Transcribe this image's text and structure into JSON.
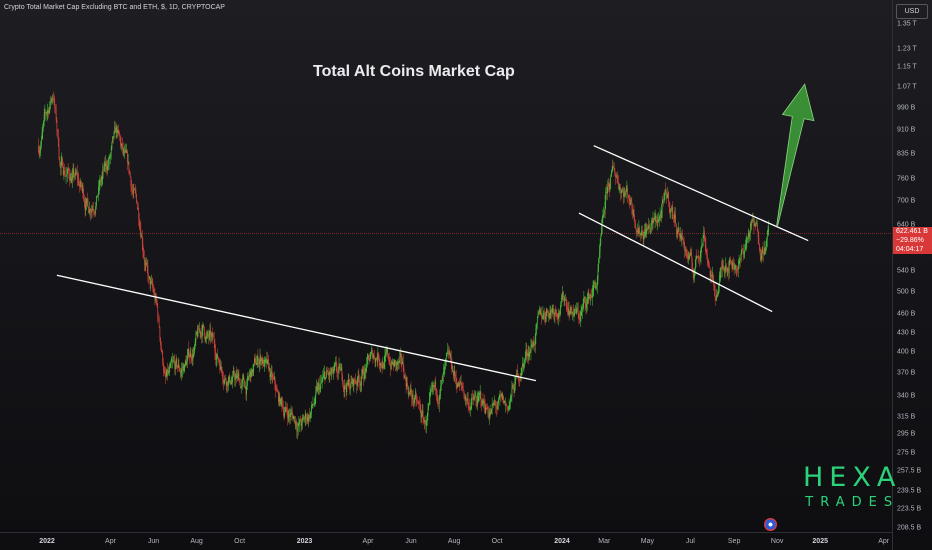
{
  "header": {
    "symbol_line": "Crypto Total Market Cap Excluding BTC and ETH, $, 1D, CRYPTOCAP"
  },
  "price_scale": {
    "currency_label": "USD",
    "ticks": [
      "1.35 T",
      "1.23 T",
      "1.15 T",
      "1.07 T",
      "990 B",
      "910 B",
      "835 B",
      "760 B",
      "700 B",
      "640 B",
      "540 B",
      "500 B",
      "460 B",
      "430 B",
      "400 B",
      "370 B",
      "340 B",
      "315 B",
      "295 B",
      "275 B",
      "257.5 B",
      "239.5 B",
      "223.5 B",
      "208.5 B"
    ]
  },
  "price_badge": {
    "value": "622.461 B",
    "change": "−29.86%",
    "countdown": "04:04:17",
    "color": "#d93838"
  },
  "time_axis": {
    "labels": [
      "2022",
      "Apr",
      "Jun",
      "Aug",
      "Oct",
      "2023",
      "Apr",
      "Jun",
      "Aug",
      "Oct",
      "2024",
      "Mar",
      "May",
      "Jul",
      "Sep",
      "Nov",
      "2025",
      "Apr"
    ]
  },
  "annotation": {
    "text": "Total Alt Coins Market Cap"
  },
  "logo": {
    "main": "HEXA",
    "sub": "TRADES",
    "color": "#2bd27a"
  },
  "colors": {
    "up_candle": "#4cc83c",
    "down_candle": "#e0463c",
    "trendline": "#ffffff",
    "arrow": "#3fa33a",
    "price_line": "#d93838"
  },
  "chart_data": {
    "type": "candlestick",
    "ylabel": "USD",
    "scale": "log",
    "ylim": [
      208.5,
      1350
    ],
    "y_unit": "B",
    "xlim": [
      "2021-12-15",
      "2025-05-01"
    ],
    "close_series": [
      {
        "date": "2021-12-20",
        "value": 860
      },
      {
        "date": "2022-01-10",
        "value": 1050
      },
      {
        "date": "2022-01-20",
        "value": 800
      },
      {
        "date": "2022-02-10",
        "value": 760
      },
      {
        "date": "2022-03-01",
        "value": 690
      },
      {
        "date": "2022-03-25",
        "value": 780
      },
      {
        "date": "2022-04-10",
        "value": 880
      },
      {
        "date": "2022-04-30",
        "value": 740
      },
      {
        "date": "2022-05-15",
        "value": 640
      },
      {
        "date": "2022-05-25",
        "value": 520
      },
      {
        "date": "2022-06-05",
        "value": 470
      },
      {
        "date": "2022-06-18",
        "value": 360
      },
      {
        "date": "2022-07-10",
        "value": 370
      },
      {
        "date": "2022-08-10",
        "value": 435
      },
      {
        "date": "2022-09-10",
        "value": 375
      },
      {
        "date": "2022-10-10",
        "value": 350
      },
      {
        "date": "2022-11-01",
        "value": 395
      },
      {
        "date": "2022-11-25",
        "value": 330
      },
      {
        "date": "2022-12-30",
        "value": 305
      },
      {
        "date": "2023-02-01",
        "value": 360
      },
      {
        "date": "2023-03-10",
        "value": 355
      },
      {
        "date": "2023-04-15",
        "value": 400
      },
      {
        "date": "2023-05-20",
        "value": 370
      },
      {
        "date": "2023-06-20",
        "value": 305
      },
      {
        "date": "2023-07-25",
        "value": 375
      },
      {
        "date": "2023-08-20",
        "value": 335
      },
      {
        "date": "2023-09-20",
        "value": 325
      },
      {
        "date": "2023-10-15",
        "value": 322
      },
      {
        "date": "2023-11-10",
        "value": 395
      },
      {
        "date": "2023-12-10",
        "value": 470
      },
      {
        "date": "2024-01-05",
        "value": 490
      },
      {
        "date": "2024-01-25",
        "value": 455
      },
      {
        "date": "2024-02-20",
        "value": 520
      },
      {
        "date": "2024-03-05",
        "value": 720
      },
      {
        "date": "2024-03-15",
        "value": 775
      },
      {
        "date": "2024-04-05",
        "value": 720
      },
      {
        "date": "2024-04-20",
        "value": 640
      },
      {
        "date": "2024-05-10",
        "value": 640
      },
      {
        "date": "2024-05-30",
        "value": 700
      },
      {
        "date": "2024-06-20",
        "value": 610
      },
      {
        "date": "2024-07-05",
        "value": 535
      },
      {
        "date": "2024-07-20",
        "value": 630
      },
      {
        "date": "2024-08-05",
        "value": 490
      },
      {
        "date": "2024-08-20",
        "value": 570
      },
      {
        "date": "2024-09-10",
        "value": 560
      },
      {
        "date": "2024-09-25",
        "value": 640
      },
      {
        "date": "2024-10-10",
        "value": 600
      },
      {
        "date": "2024-10-20",
        "value": 622
      }
    ],
    "markups": {
      "trendlines": [
        {
          "from": {
            "date": "2022-01-15",
            "value": 532
          },
          "to": {
            "date": "2023-11-25",
            "value": 360
          }
        },
        {
          "from": {
            "date": "2024-01-25",
            "value": 670
          },
          "to": {
            "date": "2024-10-25",
            "value": 465
          }
        },
        {
          "from": {
            "date": "2024-02-15",
            "value": 860
          },
          "to": {
            "date": "2024-12-15",
            "value": 605
          }
        }
      ],
      "arrow": {
        "from": {
          "date": "2024-11-01",
          "value": 640
        },
        "to": {
          "date": "2024-12-10",
          "value": 1080
        }
      }
    }
  }
}
